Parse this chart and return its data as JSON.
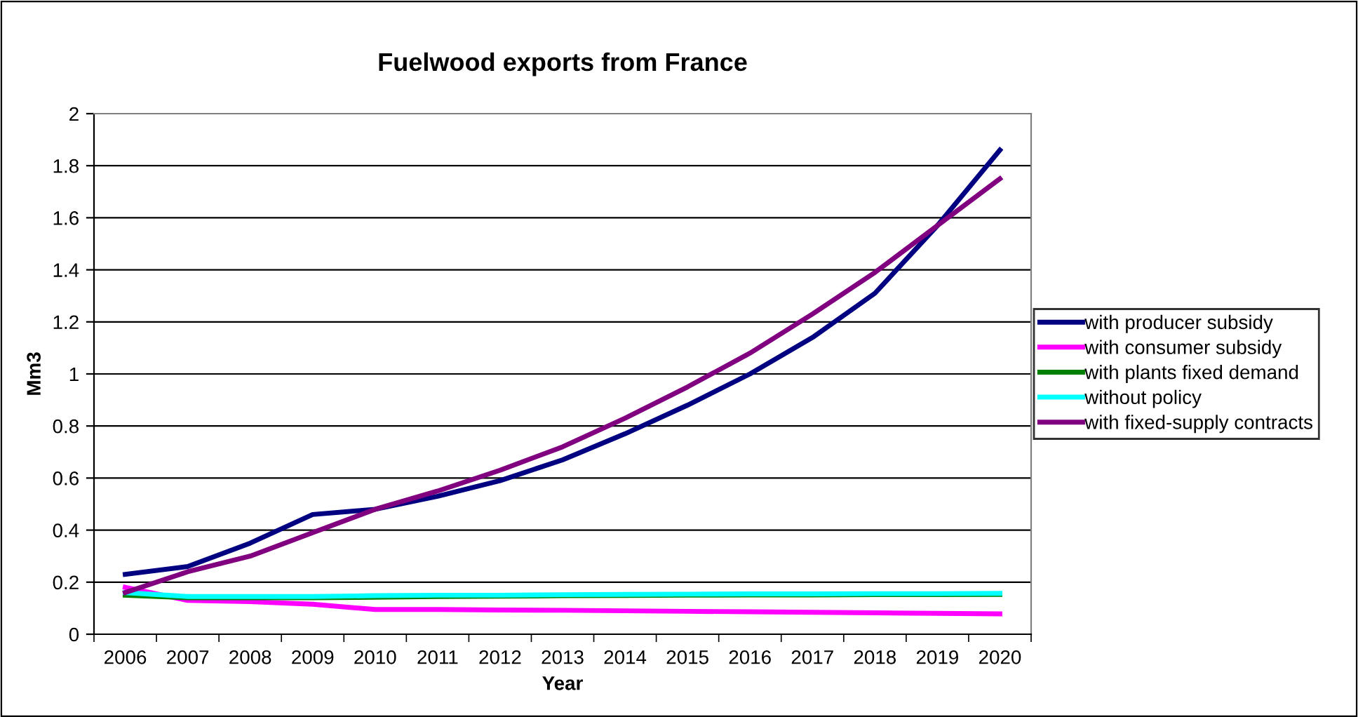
{
  "chart_data": {
    "type": "line",
    "title": "Fuelwood exports from France",
    "xlabel": "Year",
    "ylabel": "Mm3",
    "categories": [
      "2006",
      "2007",
      "2008",
      "2009",
      "2010",
      "2011",
      "2012",
      "2013",
      "2014",
      "2015",
      "2016",
      "2017",
      "2018",
      "2019",
      "2020"
    ],
    "series": [
      {
        "name": "with producer subsidy",
        "color": "#000080",
        "values": [
          0.23,
          0.26,
          0.35,
          0.46,
          0.48,
          0.53,
          0.59,
          0.67,
          0.77,
          0.88,
          1.0,
          1.14,
          1.31,
          1.57,
          1.86
        ]
      },
      {
        "name": "with consumer subsidy",
        "color": "#ff00ff",
        "values": [
          0.18,
          0.13,
          0.125,
          0.115,
          0.095,
          0.095,
          0.093,
          0.092,
          0.09,
          0.088,
          0.086,
          0.084,
          0.082,
          0.08,
          0.078
        ]
      },
      {
        "name": "with plants fixed demand",
        "color": "#008000",
        "values": [
          0.15,
          0.14,
          0.14,
          0.14,
          0.142,
          0.145,
          0.146,
          0.148,
          0.149,
          0.15,
          0.151,
          0.151,
          0.152,
          0.152,
          0.153
        ]
      },
      {
        "name": "without policy",
        "color": "#00ffff",
        "values": [
          0.16,
          0.145,
          0.145,
          0.145,
          0.148,
          0.15,
          0.15,
          0.152,
          0.153,
          0.154,
          0.155,
          0.155,
          0.156,
          0.156,
          0.157
        ]
      },
      {
        "name": "with fixed-supply contracts",
        "color": "#800080",
        "values": [
          0.16,
          0.24,
          0.3,
          0.39,
          0.48,
          0.55,
          0.63,
          0.72,
          0.83,
          0.95,
          1.08,
          1.23,
          1.39,
          1.57,
          1.75
        ]
      }
    ],
    "ylim": [
      0,
      2
    ],
    "yticks": [
      0,
      0.2,
      0.4,
      0.6,
      0.8,
      1,
      1.2,
      1.4,
      1.6,
      1.8,
      2
    ],
    "grid": "y",
    "legend": "right",
    "marker": "none",
    "line_style": "solid"
  }
}
